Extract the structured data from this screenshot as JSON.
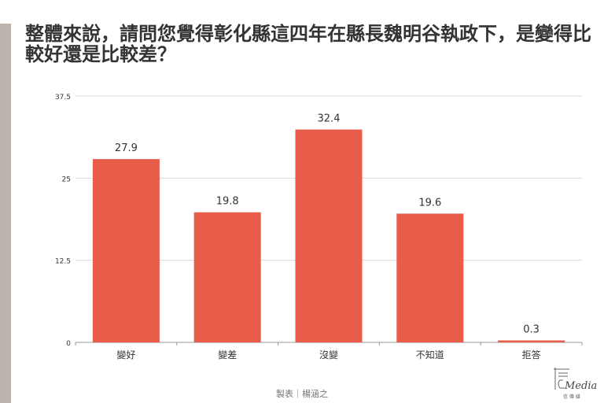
{
  "title": "整體來說，請問您覺得彰化縣這四年在縣長魏明谷執政下，是變得比較好還是比較差？",
  "footer": "製表｜楊涵之",
  "logo": {
    "name": "Media",
    "sub": "信 傳 媒"
  },
  "colors": {
    "bar": "#e85c4a",
    "grid": "#d9d9d9",
    "axis": "#999999",
    "text": "#333333"
  },
  "chart_data": {
    "type": "bar",
    "categories": [
      "變好",
      "變差",
      "沒變",
      "不知道",
      "拒答"
    ],
    "values": [
      27.9,
      19.8,
      32.4,
      19.6,
      0.3
    ],
    "yticks": [
      0,
      12.5,
      25,
      37.5
    ],
    "ylim": [
      0,
      37.5
    ],
    "grid": true
  }
}
